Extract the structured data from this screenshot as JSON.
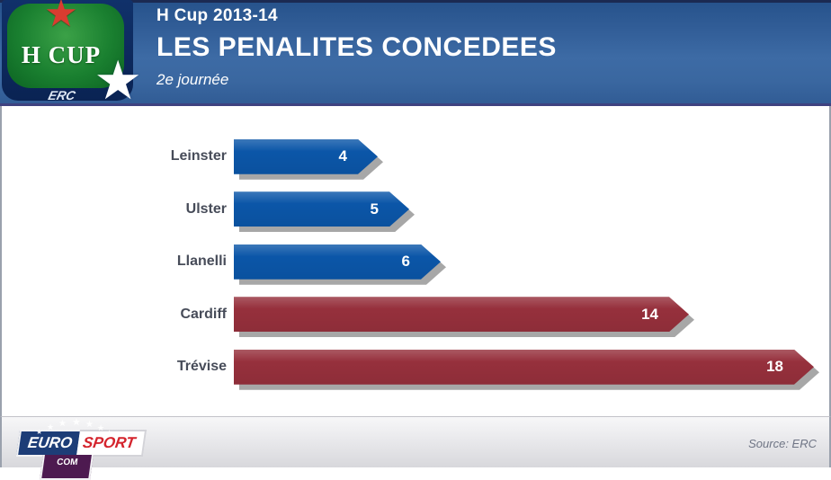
{
  "header": {
    "competition": "H Cup 2013-14",
    "title": "LES PENALITES CONCEDEES",
    "subtitle": "2e journée"
  },
  "logo": {
    "star": "★",
    "name": "H CUP",
    "erc_star": "★",
    "erc": "ERC"
  },
  "chart_data": {
    "type": "bar",
    "orientation": "horizontal",
    "title": "LES PENALITES CONCEDEES",
    "subtitle": "2e journée",
    "categories": [
      "Leinster",
      "Ulster",
      "Llanelli",
      "Cardiff",
      "Trévise"
    ],
    "values": [
      4,
      5,
      6,
      14,
      18
    ],
    "bars": [
      {
        "label": "Leinster",
        "value": 4,
        "color": "#0B56A8"
      },
      {
        "label": "Ulster",
        "value": 5,
        "color": "#0B56A8"
      },
      {
        "label": "Llanelli",
        "value": 6,
        "color": "#0B56A8"
      },
      {
        "label": "Cardiff",
        "value": 14,
        "color": "#96303C"
      },
      {
        "label": "Trévise",
        "value": 18,
        "color": "#96303C"
      }
    ],
    "xlim": [
      0,
      19
    ],
    "grid": false,
    "legend": false,
    "bar_style": "right-pointing-arrow with gray drop shadow",
    "value_labels": "white bold inside bar near tip"
  },
  "colors": {
    "bar_blue": "#0B56A8",
    "bar_red": "#96303C",
    "bar_shadow": "#A7A7A7",
    "header_blue": "#3D6BA5",
    "label_gray": "#474C59"
  },
  "footer": {
    "source": "Source: ERC",
    "eurosport": {
      "euro": "EURO",
      "sport": "SPORT",
      "com": "COM"
    },
    "stars": [
      "★",
      "★",
      "★",
      "★",
      "★",
      "★",
      "★"
    ]
  }
}
